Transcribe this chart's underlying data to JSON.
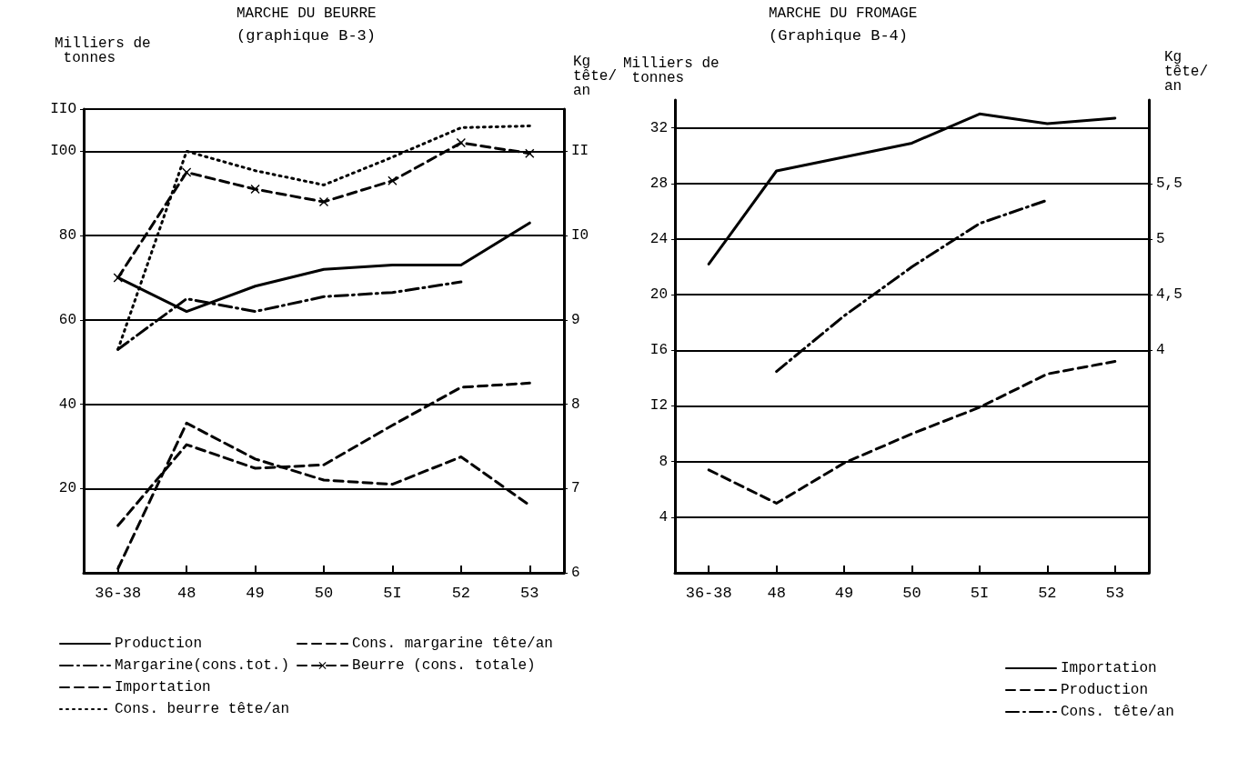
{
  "chart_data": [
    {
      "type": "line",
      "title": "MARCHE DU BEURRE",
      "subtitle": "(graphique B-3)",
      "ylabel": "Milliers de tonnes",
      "y2label": "Kg tête/an",
      "categories": [
        "36-38",
        "48",
        "49",
        "50",
        "5I",
        "52",
        "53"
      ],
      "series": [
        {
          "name": "Production",
          "color": "#000000",
          "line_style": "solid",
          "values": [
            70,
            62,
            68,
            72,
            73,
            73,
            83
          ]
        },
        {
          "name": "Margarine(cons.tot.)",
          "color": "#000000",
          "line_style": "dashdot",
          "values": [
            53,
            65,
            62,
            65.5,
            66.5,
            69,
            null
          ]
        },
        {
          "name": "Importation",
          "color": "#000000",
          "line_style": "dashed",
          "values": [
            1,
            35.5,
            27,
            22,
            21,
            27.5,
            16
          ]
        },
        {
          "name": "Cons. beurre tête/an",
          "color": "#000000",
          "line_style": "dotted",
          "axis": "y2",
          "values": [
            8.65,
            11,
            10.77,
            10.6,
            10.93,
            11.28,
            11.3
          ]
        },
        {
          "name": "Cons. margarine tête/an",
          "color": "#000000",
          "line_style": "dashed",
          "axis": "y2",
          "values": [
            6.56,
            7.52,
            7.24,
            7.28,
            7.75,
            8.2,
            8.25
          ]
        },
        {
          "name": "Beurre (cons. totale)",
          "color": "#000000",
          "line_style": "dashed",
          "marker": "cross",
          "values": [
            70,
            95,
            91,
            88,
            93,
            102,
            99.5
          ]
        }
      ],
      "ylim": [
        0,
        110
      ],
      "yticks": [
        20,
        40,
        60,
        80,
        {
          "value": 100,
          "label": "I00"
        },
        {
          "value": 110,
          "label": "IIO"
        }
      ],
      "y2lim": [
        6,
        11.5
      ],
      "y2ticks": [
        6,
        7,
        8,
        9,
        {
          "value": 10,
          "label": "I0"
        },
        {
          "value": 11,
          "label": "II"
        }
      ],
      "grid": "y",
      "legend": "bottom",
      "marker": "none"
    },
    {
      "type": "line",
      "title": "MARCHE DU FROMAGE",
      "subtitle": "(Graphique B-4)",
      "ylabel": "Milliers de tonnes",
      "y2label": "Kg tête/an",
      "categories": [
        "36-38",
        "48",
        "49",
        "50",
        "5I",
        "52",
        "53"
      ],
      "series": [
        {
          "name": "Importation",
          "color": "#000000",
          "line_style": "solid",
          "values": [
            22.2,
            28.9,
            29.9,
            30.9,
            33,
            32.3,
            32.7
          ]
        },
        {
          "name": "Production",
          "color": "#000000",
          "line_style": "dashed",
          "values": [
            7.4,
            5,
            7.9,
            10,
            11.9,
            14.3,
            15.2
          ]
        },
        {
          "name": "Cons. tête/an",
          "color": "#000000",
          "line_style": "dashdot",
          "axis": "y2",
          "values": [
            null,
            3.81,
            4.31,
            4.75,
            5.14,
            5.35,
            null
          ]
        }
      ],
      "ylim": [
        0,
        34
      ],
      "yticks": [
        4,
        8,
        {
          "value": 12,
          "label": "I2"
        },
        {
          "value": 16,
          "label": "I6"
        },
        20,
        24,
        28,
        32
      ],
      "y2lim": [
        2,
        6.25
      ],
      "y2ticks": [
        4,
        {
          "value": 4.5,
          "label": "4,5"
        },
        5,
        {
          "value": 5.5,
          "label": "5,5"
        }
      ],
      "grid": "y",
      "legend": "bottom",
      "marker": "none"
    }
  ]
}
